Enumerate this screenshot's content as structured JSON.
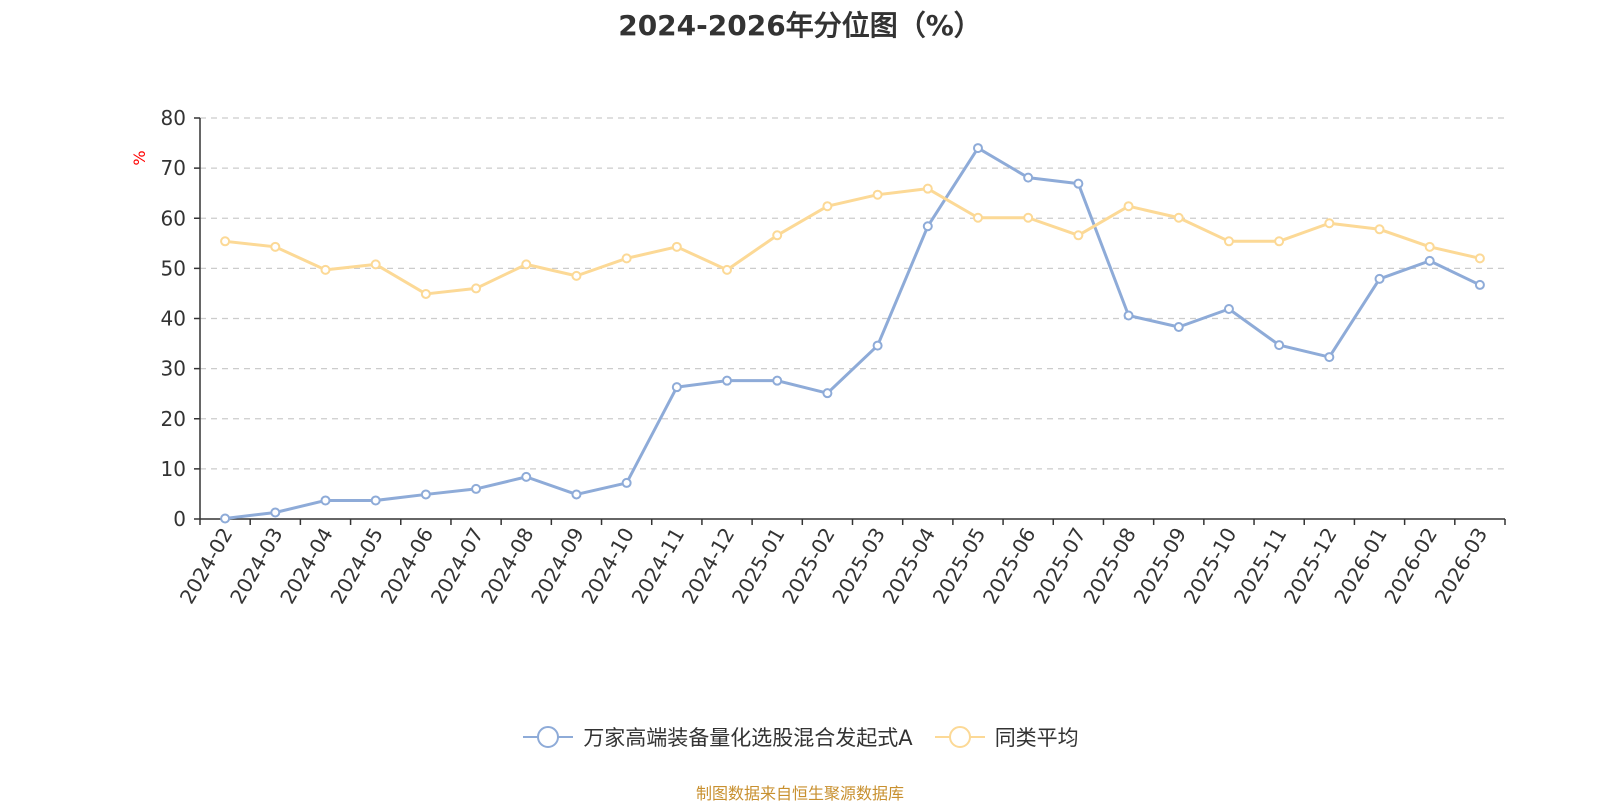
{
  "chart_data": {
    "type": "line",
    "title": "2024-2026年分位图（%）",
    "ylabel": "%",
    "ylim": [
      0,
      80
    ],
    "yticks": [
      0,
      10,
      20,
      30,
      40,
      50,
      60,
      70,
      80
    ],
    "grid": true,
    "legend_position": "bottom",
    "categories": [
      "2024-02",
      "2024-03",
      "2024-04",
      "2024-05",
      "2024-06",
      "2024-07",
      "2024-08",
      "2024-09",
      "2024-10",
      "2024-11",
      "2024-12",
      "2025-01",
      "2025-02",
      "2025-03",
      "2025-04",
      "2025-05",
      "2025-06",
      "2025-07",
      "2025-08",
      "2025-09",
      "2025-10",
      "2025-11",
      "2025-12",
      "2026-01",
      "2026-02",
      "2026-03"
    ],
    "series": [
      {
        "name": "万家高端装备量化选股混合发起式A",
        "color": "#8eabd8",
        "values": [
          0.1,
          1.3,
          3.7,
          3.7,
          4.9,
          6.0,
          8.4,
          4.9,
          7.2,
          26.3,
          27.6,
          27.6,
          25.1,
          34.6,
          58.4,
          74.0,
          68.1,
          66.9,
          40.6,
          38.3,
          41.9,
          34.7,
          32.3,
          47.9,
          51.5,
          46.7
        ]
      },
      {
        "name": "同类平均",
        "color": "#fcd996",
        "values": [
          55.4,
          54.3,
          49.7,
          50.8,
          44.9,
          46.0,
          50.8,
          48.5,
          52.0,
          54.3,
          49.7,
          56.6,
          62.4,
          64.7,
          65.9,
          60.1,
          60.1,
          56.6,
          62.4,
          60.1,
          55.4,
          55.4,
          59.0,
          57.8,
          54.3,
          52.0
        ]
      }
    ]
  },
  "unit_label_color": "#ff0000",
  "source_note": "制图数据来自恒生聚源数据库",
  "source_note_color": "#c8902f"
}
